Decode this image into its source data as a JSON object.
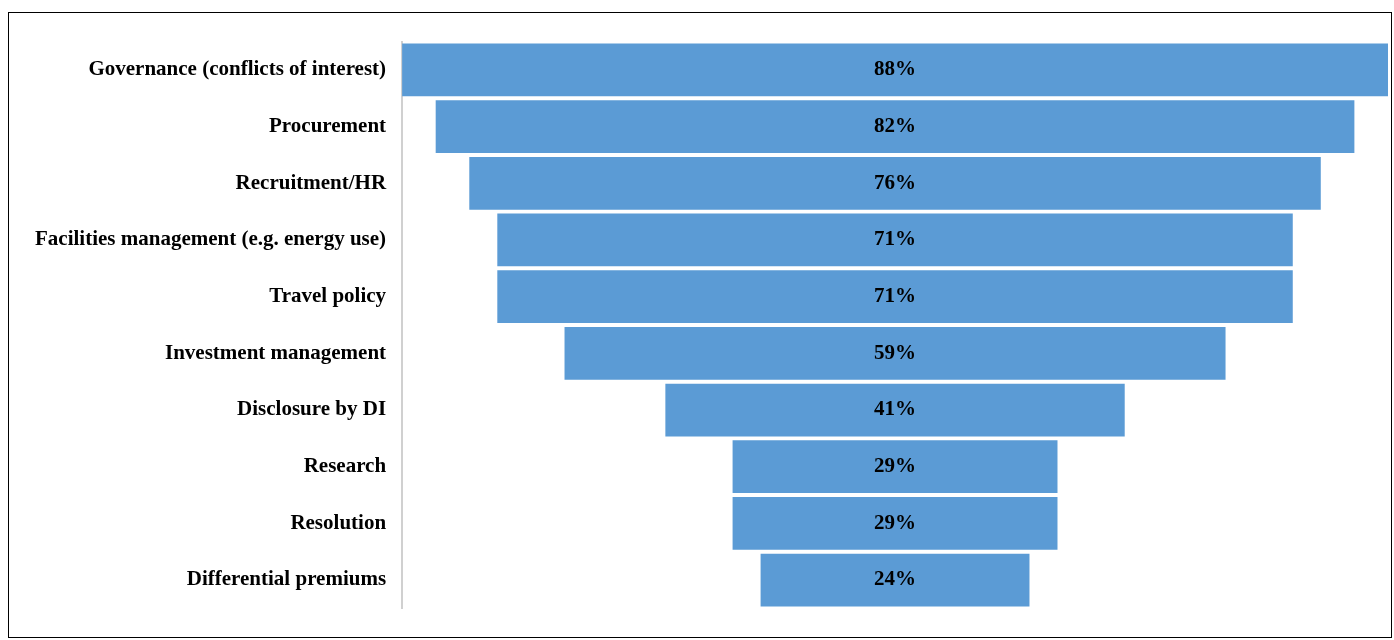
{
  "chart_data": {
    "type": "other",
    "categories": [
      "Governance (conflicts of interest)",
      "Procurement",
      "Recruitment/HR",
      "Facilities management (e.g. energy use)",
      "Travel policy",
      "Investment management",
      "Disclosure by DI",
      "Research",
      "Resolution",
      "Differential premiums"
    ],
    "values": [
      88,
      82,
      76,
      71,
      71,
      59,
      41,
      29,
      29,
      24
    ],
    "value_labels": [
      "88%",
      "82%",
      "76%",
      "71%",
      "71%",
      "59%",
      "41%",
      "29%",
      "29%",
      "24%"
    ],
    "color": "#5b9bd5"
  }
}
